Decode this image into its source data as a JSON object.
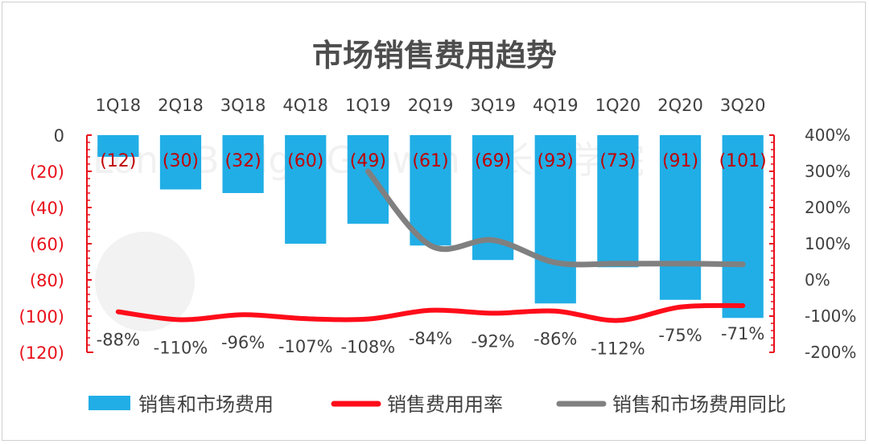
{
  "chart_data": {
    "type": "bar",
    "title": "市场销售费用趋势",
    "categories": [
      "1Q18",
      "2Q18",
      "3Q18",
      "4Q18",
      "1Q19",
      "2Q19",
      "3Q19",
      "4Q19",
      "1Q20",
      "2Q20",
      "3Q20"
    ],
    "left_axis": {
      "ylim": [
        -120,
        0
      ],
      "ticks": [
        0,
        -20,
        -40,
        -60,
        -80,
        -100,
        -120
      ],
      "tick_labels": [
        "0",
        "(20)",
        "(40)",
        "(60)",
        "(80)",
        "(100)",
        "(120)"
      ],
      "color": "#e8101a"
    },
    "right_axis": {
      "ylim": [
        -200,
        400
      ],
      "ticks": [
        400,
        300,
        200,
        100,
        0,
        -100,
        -200
      ],
      "tick_labels": [
        "400%",
        "300%",
        "200%",
        "100%",
        "0%",
        "-100%",
        "-200%"
      ]
    },
    "series": [
      {
        "name": "销售和市场费用",
        "kind": "bar",
        "axis": "left",
        "color": "#21aee6",
        "values": [
          -12,
          -30,
          -32,
          -60,
          -49,
          -61,
          -69,
          -93,
          -73,
          -91,
          -101
        ],
        "labels": [
          "(12)",
          "(30)",
          "(32)",
          "(60)",
          "(49)",
          "(61)",
          "(69)",
          "(93)",
          "(73)",
          "(91)",
          "(101)"
        ]
      },
      {
        "name": "销售费用用率",
        "kind": "line",
        "axis": "right",
        "color": "#ff0d1a",
        "values": [
          -88,
          -110,
          -96,
          -107,
          -108,
          -84,
          -92,
          -86,
          -112,
          -75,
          -71
        ],
        "labels": [
          "-88%",
          "-110%",
          "-96%",
          "-107%",
          "-108%",
          "-84%",
          "-92%",
          "-86%",
          "-112%",
          "-75%",
          "-71%"
        ]
      },
      {
        "name": "销售和市场费用同比",
        "kind": "line",
        "axis": "right",
        "color": "#808080",
        "values": [
          null,
          null,
          null,
          null,
          300,
          95,
          110,
          48,
          45,
          45,
          43
        ]
      }
    ],
    "legend": "bottom"
  }
}
